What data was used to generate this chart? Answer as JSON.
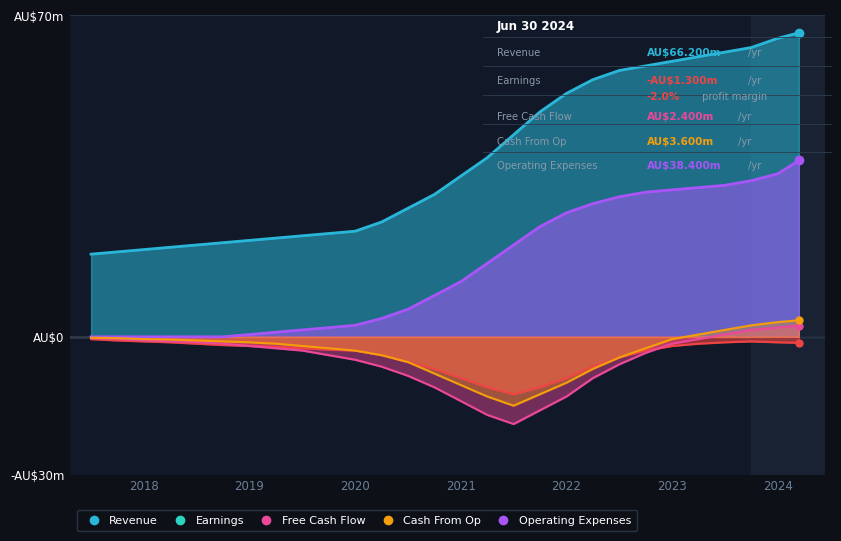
{
  "bg_color": "#0d1117",
  "plot_bg_color": "#111827",
  "years": [
    2017.5,
    2017.75,
    2018.0,
    2018.25,
    2018.5,
    2018.75,
    2019.0,
    2019.25,
    2019.5,
    2019.75,
    2020.0,
    2020.25,
    2020.5,
    2020.75,
    2021.0,
    2021.25,
    2021.5,
    2021.75,
    2022.0,
    2022.25,
    2022.5,
    2022.75,
    2023.0,
    2023.25,
    2023.5,
    2023.75,
    2024.0,
    2024.2
  ],
  "revenue": [
    18,
    18.5,
    19,
    19.5,
    20,
    20.5,
    21,
    21.5,
    22,
    22.5,
    23,
    25,
    28,
    31,
    35,
    39,
    44,
    49,
    53,
    56,
    58,
    59,
    60,
    61,
    62,
    63,
    65,
    66.2
  ],
  "earnings": [
    -0.5,
    -0.8,
    -1.0,
    -1.2,
    -1.5,
    -1.8,
    -2.0,
    -2.2,
    -2.5,
    -2.8,
    -3.0,
    -4.0,
    -5.5,
    -7.0,
    -9.0,
    -11.0,
    -12.5,
    -11.0,
    -9.0,
    -6.5,
    -4.5,
    -3.0,
    -2.0,
    -1.5,
    -1.2,
    -1.0,
    -1.2,
    -1.3
  ],
  "free_cash_flow": [
    -0.3,
    -0.5,
    -0.8,
    -1.0,
    -1.2,
    -1.5,
    -2.0,
    -2.5,
    -3.0,
    -4.0,
    -5.0,
    -6.5,
    -8.5,
    -11.0,
    -14.0,
    -17.0,
    -19.0,
    -16.0,
    -13.0,
    -9.0,
    -6.0,
    -3.5,
    -1.5,
    -0.5,
    0.5,
    1.5,
    2.0,
    2.4
  ],
  "cash_from_op": [
    -0.2,
    -0.3,
    -0.5,
    -0.6,
    -0.8,
    -1.0,
    -1.2,
    -1.5,
    -2.0,
    -2.5,
    -3.0,
    -4.0,
    -5.5,
    -8.0,
    -10.5,
    -13.0,
    -15.0,
    -12.5,
    -10.0,
    -7.0,
    -4.5,
    -2.5,
    -0.5,
    0.5,
    1.5,
    2.5,
    3.2,
    3.6
  ],
  "op_expenses": [
    0,
    0,
    0,
    0,
    0,
    0,
    0.5,
    1.0,
    1.5,
    2.0,
    2.5,
    4.0,
    6.0,
    9.0,
    12.0,
    16.0,
    20.0,
    24.0,
    27.0,
    29.0,
    30.5,
    31.5,
    32.0,
    32.5,
    33.0,
    34.0,
    35.5,
    38.4
  ],
  "ylim": [
    -30,
    70
  ],
  "xlim": [
    2017.3,
    2024.45
  ],
  "yticks": [
    -30,
    0,
    70
  ],
  "ytick_labels": [
    "-AU$30m",
    "AU$0",
    "AU$70m"
  ],
  "colors": {
    "revenue": "#29b6d8",
    "earnings": "#ef4444",
    "free_cash_flow": "#ec4899",
    "cash_from_op": "#f59e0b",
    "op_expenses": "#a855f7"
  },
  "legend_earnings_color": "#2dd4bf",
  "legend": [
    {
      "label": "Revenue",
      "color": "#29b6d8"
    },
    {
      "label": "Earnings",
      "color": "#2dd4bf"
    },
    {
      "label": "Free Cash Flow",
      "color": "#ec4899"
    },
    {
      "label": "Cash From Op",
      "color": "#f59e0b"
    },
    {
      "label": "Operating Expenses",
      "color": "#a855f7"
    }
  ],
  "infobox": {
    "date": "Jun 30 2024",
    "rows": [
      {
        "label": "Revenue",
        "value": "AU$66.200m",
        "unit": "/yr",
        "value_color": "#29b6d8"
      },
      {
        "label": "Earnings",
        "value": "-AU$1.300m",
        "unit": "/yr",
        "value_color": "#ef4444"
      },
      {
        "label": "",
        "value": "-2.0%",
        "unit": " profit margin",
        "value_color": "#ef4444"
      },
      {
        "label": "Free Cash Flow",
        "value": "AU$2.400m",
        "unit": "/yr",
        "value_color": "#ec4899"
      },
      {
        "label": "Cash From Op",
        "value": "AU$3.600m",
        "unit": "/yr",
        "value_color": "#f59e0b"
      },
      {
        "label": "Operating Expenses",
        "value": "AU$38.400m",
        "unit": "/yr",
        "value_color": "#a855f7"
      }
    ]
  },
  "shade_region_start": 2023.75,
  "shade_region_end": 2024.45
}
